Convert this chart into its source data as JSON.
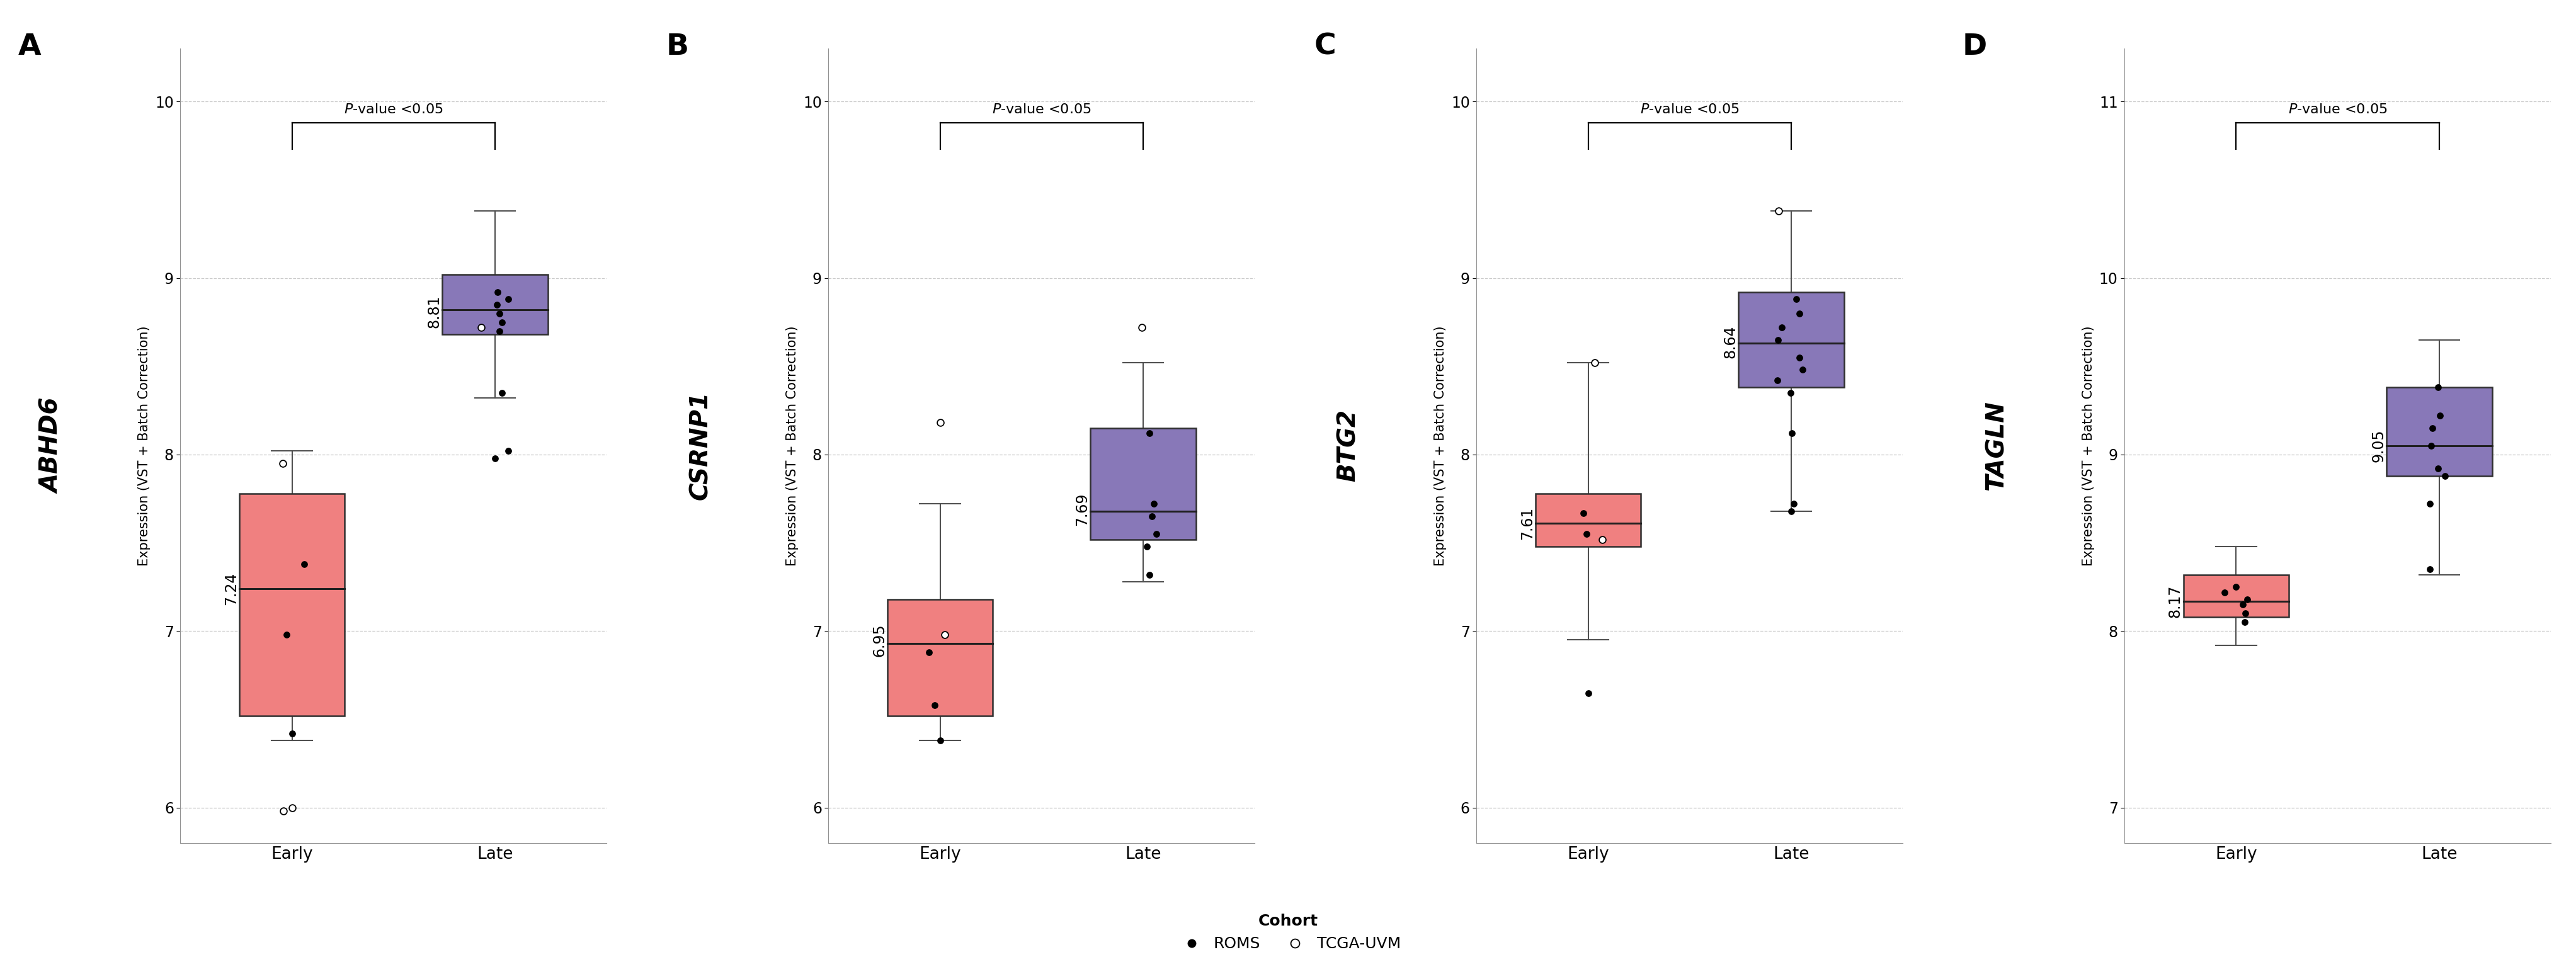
{
  "panels": [
    {
      "label": "A",
      "gene": "ABHD6",
      "ylim": [
        5.8,
        10.3
      ],
      "yticks": [
        6,
        7,
        8,
        9,
        10
      ],
      "early_median": 7.24,
      "late_median": 8.81,
      "early_box": {
        "q1": 6.52,
        "median": 7.24,
        "q3": 7.78,
        "whisker_low": 6.38,
        "whisker_high": 8.02
      },
      "late_box": {
        "q1": 8.68,
        "median": 8.82,
        "q3": 9.02,
        "whisker_low": 8.32,
        "whisker_high": 9.38
      },
      "early_dots_filled": [
        7.38,
        6.98
      ],
      "early_dots_open": [
        7.95,
        5.98
      ],
      "late_dots_filled": [
        8.85,
        8.92,
        8.88,
        8.8,
        8.75,
        8.7,
        8.35,
        8.02
      ],
      "late_dots_open": [
        8.72
      ],
      "early_outliers_filled": [
        6.42
      ],
      "late_outliers_filled": [
        7.98
      ],
      "early_whisker_outliers_open": [
        6.0
      ],
      "late_whisker_outliers_open": []
    },
    {
      "label": "B",
      "gene": "CSRNP1",
      "ylim": [
        5.8,
        10.3
      ],
      "yticks": [
        6,
        7,
        8,
        9,
        10
      ],
      "early_median": 6.95,
      "late_median": 7.69,
      "early_box": {
        "q1": 6.52,
        "median": 6.93,
        "q3": 7.18,
        "whisker_low": 6.38,
        "whisker_high": 7.72
      },
      "late_box": {
        "q1": 7.52,
        "median": 7.68,
        "q3": 8.15,
        "whisker_low": 7.28,
        "whisker_high": 8.52
      },
      "early_dots_filled": [
        6.88,
        6.58
      ],
      "early_dots_open": [
        6.98
      ],
      "late_dots_filled": [
        7.65,
        7.72,
        7.55,
        8.12,
        7.48,
        7.32
      ],
      "late_dots_open": [
        8.72
      ],
      "early_outliers_filled": [
        6.38
      ],
      "late_outliers_filled": [],
      "early_whisker_outliers_open": [
        8.18
      ],
      "late_whisker_outliers_open": []
    },
    {
      "label": "C",
      "gene": "BTG2",
      "ylim": [
        5.8,
        10.3
      ],
      "yticks": [
        6,
        7,
        8,
        9,
        10
      ],
      "early_median": 7.61,
      "late_median": 8.64,
      "early_box": {
        "q1": 7.48,
        "median": 7.61,
        "q3": 7.78,
        "whisker_low": 6.95,
        "whisker_high": 8.52
      },
      "late_box": {
        "q1": 8.38,
        "median": 8.63,
        "q3": 8.92,
        "whisker_low": 7.68,
        "whisker_high": 9.38
      },
      "early_dots_filled": [
        7.67,
        7.55
      ],
      "early_dots_open": [
        8.52,
        7.52
      ],
      "late_dots_filled": [
        8.88,
        8.8,
        8.72,
        8.65,
        8.55,
        8.48,
        8.42,
        8.35,
        8.12,
        7.72
      ],
      "late_dots_open": [
        9.38
      ],
      "early_outliers_filled": [
        6.65
      ],
      "late_outliers_filled": [
        7.68
      ],
      "early_whisker_outliers_open": [],
      "late_whisker_outliers_open": []
    },
    {
      "label": "D",
      "gene": "TAGLN",
      "ylim": [
        6.8,
        11.3
      ],
      "yticks": [
        7,
        8,
        9,
        10,
        11
      ],
      "early_median": 8.17,
      "late_median": 9.05,
      "early_box": {
        "q1": 8.08,
        "median": 8.17,
        "q3": 8.32,
        "whisker_low": 7.92,
        "whisker_high": 8.48
      },
      "late_box": {
        "q1": 8.88,
        "median": 9.05,
        "q3": 9.38,
        "whisker_low": 8.32,
        "whisker_high": 9.65
      },
      "early_dots_filled": [
        8.18,
        8.15,
        8.1,
        8.25,
        8.05,
        8.22
      ],
      "early_dots_open": [],
      "late_dots_filled": [
        9.05,
        9.15,
        8.92,
        9.38,
        8.88,
        8.35,
        9.22,
        8.72
      ],
      "late_dots_open": [],
      "early_outliers_filled": [],
      "late_outliers_filled": [],
      "early_whisker_outliers_open": [],
      "late_whisker_outliers_open": []
    }
  ],
  "early_color": "#F08080",
  "late_color": "#8878B8",
  "box_edge_color": "#303030",
  "median_line_color": "#202020",
  "whisker_color": "#505050",
  "ylabel": "Expression (VST + Batch Correction)",
  "xlabel_early": "Early",
  "xlabel_late": "Late",
  "pvalue_text_italic": "P",
  "pvalue_text_normal": "-value <0.05",
  "legend_title": "Cohort",
  "legend_filled": "ROMS",
  "legend_open": "TCGA-UVM"
}
